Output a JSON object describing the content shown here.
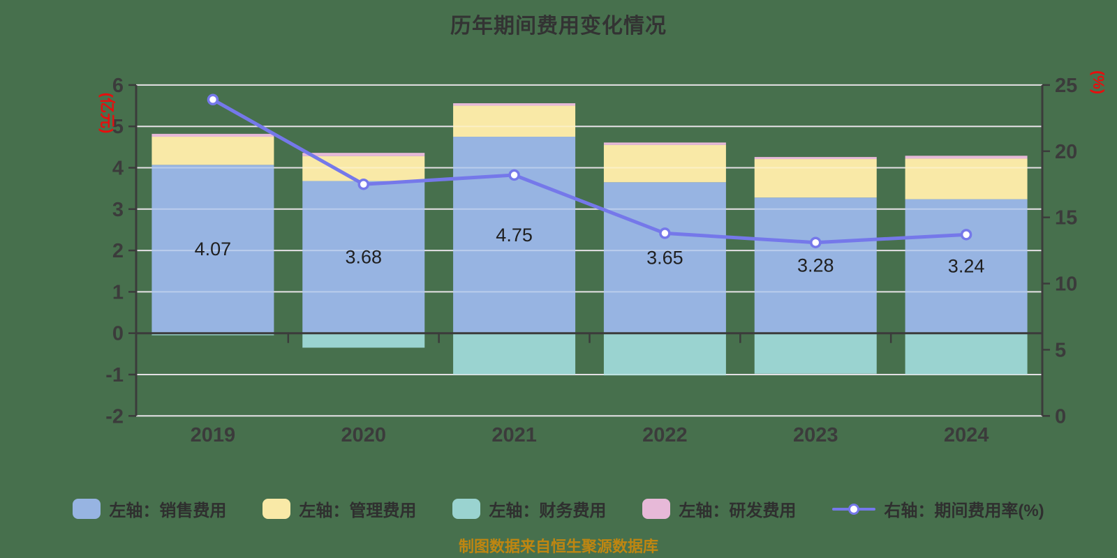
{
  "title": "历年期间费用变化情况",
  "source_note": "制图数据来自恒生聚源数据库",
  "background_color": "#47704D",
  "chart_data": {
    "type": "bar",
    "subtype": "stacked-bar-with-line",
    "categories": [
      "2019",
      "2020",
      "2021",
      "2022",
      "2023",
      "2024"
    ],
    "series": [
      {
        "name": "左轴：销售费用",
        "type": "bar",
        "stack": "total",
        "yaxis": "left",
        "color": "#97b4e2",
        "values": [
          4.07,
          3.68,
          4.75,
          3.65,
          3.28,
          3.24
        ]
      },
      {
        "name": "左轴：管理费用",
        "type": "bar",
        "stack": "total",
        "yaxis": "left",
        "color": "#f9e9a7",
        "values": [
          0.68,
          0.6,
          0.75,
          0.9,
          0.93,
          0.98
        ]
      },
      {
        "name": "左轴：研发费用",
        "type": "bar",
        "stack": "total",
        "yaxis": "left",
        "color": "#e7b9d8",
        "values": [
          0.07,
          0.08,
          0.06,
          0.06,
          0.05,
          0.07
        ]
      },
      {
        "name": "左轴：财务费用",
        "type": "bar",
        "stack": "total",
        "yaxis": "left",
        "color": "#9ad3d0",
        "values": [
          -0.05,
          -0.35,
          -1.0,
          -1.02,
          -0.98,
          -1.0
        ]
      },
      {
        "name": "右轴：期间费用率(%)",
        "type": "line",
        "yaxis": "right",
        "color": "#7578ea",
        "marker": {
          "fill": "#ffffff",
          "stroke": "#7578ea"
        },
        "values": [
          23.9,
          17.5,
          18.2,
          13.8,
          13.1,
          13.7
        ]
      }
    ],
    "bar_value_labels": [
      "4.07",
      "3.68",
      "4.75",
      "3.65",
      "3.28",
      "3.24"
    ],
    "axes": {
      "left": {
        "name": "(亿元)",
        "name_color": "#e60e0e",
        "min": -2,
        "max": 6,
        "tick_labels": [
          "6",
          "5",
          "4",
          "3",
          "2",
          "1",
          "0",
          "-1",
          "-2"
        ]
      },
      "right": {
        "name": "(%)",
        "name_color": "#e60e0e",
        "min": 0,
        "max": 25,
        "tick_labels": [
          "25",
          "20",
          "15",
          "10",
          "5",
          "0"
        ]
      }
    },
    "grid": {
      "show": true,
      "color": "#d6d1d6"
    },
    "legend_position": "bottom",
    "text_color": "#3b3b3b",
    "bar_label_color": "#1f1f1f"
  },
  "legend": {
    "items": [
      {
        "label": "左轴：销售费用",
        "color": "#97b4e2",
        "symbol": "rect"
      },
      {
        "label": "左轴：管理费用",
        "color": "#f9e9a7",
        "symbol": "rect"
      },
      {
        "label": "左轴：财务费用",
        "color": "#9ad3d0",
        "symbol": "rect"
      },
      {
        "label": "左轴：研发费用",
        "color": "#e7b9d8",
        "symbol": "rect"
      },
      {
        "label": "右轴：期间费用率(%)",
        "color": "#7578ea",
        "symbol": "line"
      }
    ]
  }
}
